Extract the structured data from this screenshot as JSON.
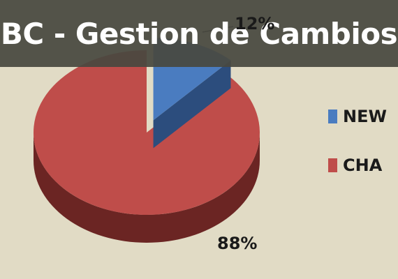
{
  "title": "BC - Gestion de Cambios",
  "colors": {
    "background": "#e1dbc5",
    "title_bar": "#484840",
    "new_top": "#4a7cc0",
    "new_side": "#2c4d7d",
    "cha_top": "#bf4d4a",
    "cha_side": "#6b2523"
  },
  "chart_data": {
    "type": "pie",
    "style": "3d-exploded",
    "categories": [
      "NEW",
      "CHA"
    ],
    "values": [
      12,
      88
    ],
    "data_labels": [
      "12%",
      "88%"
    ],
    "legend": {
      "position": "right",
      "entries": [
        "NEW",
        "CHA"
      ]
    }
  }
}
